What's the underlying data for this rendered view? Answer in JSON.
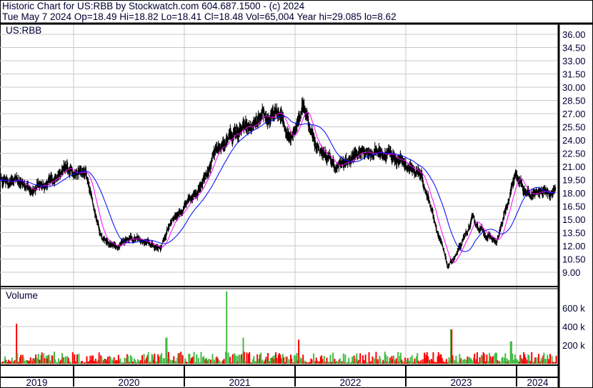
{
  "header": {
    "title": "Historic Chart for US:RBB by Stockwatch.com 604.687.1500 - (c) 2024",
    "quote": "Tue May  7 2024  Op=18.49  Hi=18.82  Lo=18.41  Cl=18.48  Vol=65,004  Year hi=29.085  lo=8.62"
  },
  "chart_data": [
    {
      "type": "line",
      "title": "US:RBB",
      "price_ticks": [
        "36.00",
        "34.50",
        "33.00",
        "31.50",
        "30.00",
        "28.50",
        "27.00",
        "25.50",
        "24.00",
        "22.50",
        "21.00",
        "19.50",
        "18.00",
        "16.50",
        "15.00",
        "13.50",
        "12.00",
        "10.50",
        "9.00"
      ],
      "ylim": [
        9,
        36
      ],
      "x_labels": [
        "2019",
        "2020",
        "2021",
        "2022",
        "2023",
        "2024"
      ],
      "grid": true,
      "colors": {
        "price": "#000000",
        "ma_short": "#ff00ff",
        "ma_long": "#0000ff"
      },
      "close_points": [
        [
          "2019-05-02",
          19.6
        ],
        [
          "2019-08-28",
          18.6
        ],
        [
          "2019-12-25",
          20.8
        ],
        [
          "2020-02-10",
          20.0
        ],
        [
          "2020-03-05",
          16.4
        ],
        [
          "2020-03-29",
          13.1
        ],
        [
          "2020-05-15",
          11.9
        ],
        [
          "2020-06-30",
          13.1
        ],
        [
          "2020-09-22",
          11.9
        ],
        [
          "2020-10-16",
          11.9
        ],
        [
          "2020-11-20",
          15.2
        ],
        [
          "2021-01-29",
          17.2
        ],
        [
          "2021-03-17",
          21.2
        ],
        [
          "2021-05-27",
          24.5
        ],
        [
          "2021-08-04",
          25.3
        ],
        [
          "2021-11-06",
          26.9
        ],
        [
          "2021-12-12",
          24.5
        ],
        [
          "2022-01-29",
          28.1
        ],
        [
          "2022-03-04",
          23.7
        ],
        [
          "2022-05-15",
          20.8
        ],
        [
          "2022-08-19",
          22.9
        ],
        [
          "2022-11-07",
          22.5
        ],
        [
          "2023-02-21",
          20.0
        ],
        [
          "2023-03-30",
          15.6
        ],
        [
          "2023-05-16",
          9.5
        ],
        [
          "2023-07-01",
          11.9
        ],
        [
          "2023-08-05",
          14.8
        ],
        [
          "2023-10-26",
          12.3
        ],
        [
          "2023-12-25",
          19.6
        ],
        [
          "2024-02-10",
          17.6
        ],
        [
          "2024-05-07",
          18.48
        ]
      ]
    },
    {
      "type": "bar",
      "title": "Volume",
      "y_ticks": [
        "600 k",
        "400 k",
        "200 k"
      ],
      "ylim": [
        0,
        800000
      ],
      "colors": {
        "up": "#44bb44",
        "down": "#ff0000"
      },
      "spikes": [
        [
          "2019-06-22",
          430000
        ],
        [
          "2020-10-30",
          280000
        ],
        [
          "2021-05-15",
          780000
        ],
        [
          "2021-07-10",
          280000
        ],
        [
          "2022-01-10",
          260000
        ],
        [
          "2023-05-25",
          370000
        ],
        [
          "2023-12-10",
          240000
        ]
      ]
    }
  ]
}
